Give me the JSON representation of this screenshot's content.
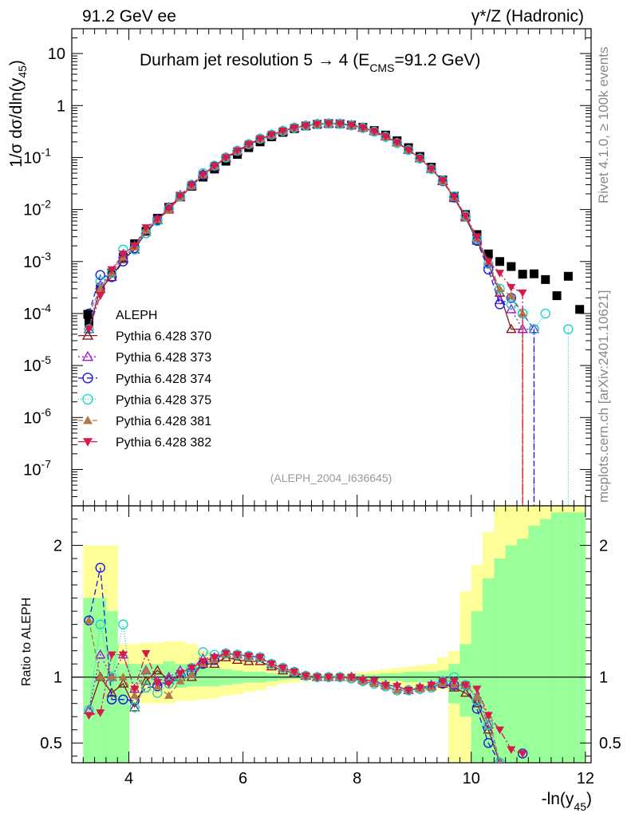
{
  "header": {
    "left": "91.2 GeV ee",
    "right": "γ*/Z (Hadronic)"
  },
  "side_labels": {
    "rivet": "Rivet 4.1.0, ≥ 100k events",
    "mcplots": "mcplots.cern.ch [arXiv:2401.10621]"
  },
  "analysis_tag": "(ALEPH_2004_I636645)",
  "colors": {
    "ALEPH": "#000000",
    "370": "#8b1a1a",
    "373": "#9a1ad6",
    "374": "#1a1adb",
    "375": "#1ad6c4",
    "381": "#b07848",
    "382": "#d61a4a",
    "band_yellow": "#ffff99",
    "band_green": "#99ff99"
  },
  "chart_data": [
    {
      "type": "line",
      "title": "Durham jet resolution 5 → 4 (E_CMS=91.2 GeV)",
      "title_main": "Durham jet resolution 5",
      "title_arrow": "→",
      "title_rest": "4 (E",
      "title_sub": "CMS",
      "title_end": "=91.2 GeV)",
      "ylabel": "1/σ  dσ/dln(y45)",
      "ylabel_main": "1/σ  dσ/dln(y",
      "ylabel_sub": "45",
      "ylabel_end": ")",
      "yscale": "log",
      "xlim": [
        3.0,
        12.1
      ],
      "ylim": [
        2e-08,
        30
      ],
      "y_tick_labels": [
        "10^-7",
        "10^-6",
        "10^-5",
        "10^-4",
        "10^-3",
        "10^-2",
        "10^-1",
        "1",
        "10"
      ],
      "x": [
        3.3,
        3.5,
        3.7,
        3.9,
        4.1,
        4.3,
        4.5,
        4.7,
        4.9,
        5.1,
        5.3,
        5.5,
        5.7,
        5.9,
        6.1,
        6.3,
        6.5,
        6.7,
        6.9,
        7.1,
        7.3,
        7.5,
        7.7,
        7.9,
        8.1,
        8.3,
        8.5,
        8.7,
        8.9,
        9.1,
        9.3,
        9.5,
        9.7,
        9.9,
        10.1,
        10.3,
        10.5,
        10.7,
        10.9,
        11.1,
        11.3,
        11.5,
        11.7,
        11.9
      ],
      "series": [
        {
          "name": "ALEPH",
          "marker": "square",
          "values": [
            7e-05,
            0.0003,
            0.0006,
            0.0012,
            0.0022,
            0.0038,
            0.0068,
            0.011,
            0.018,
            0.028,
            0.042,
            0.06,
            0.085,
            0.115,
            0.155,
            0.2,
            0.25,
            0.305,
            0.36,
            0.405,
            0.435,
            0.45,
            0.445,
            0.42,
            0.38,
            0.33,
            0.27,
            0.21,
            0.155,
            0.105,
            0.065,
            0.037,
            0.018,
            0.008,
            0.0033,
            0.0014,
            0.001,
            0.0008,
            0.00057,
            0.00058,
            0.00045,
            0.00022,
            0.00052,
            0.00012
          ]
        },
        {
          "name": "Pythia 6.428 370",
          "marker": "triangle-up-open",
          "dash": "",
          "values": [
            5e-05,
            0.0003,
            0.0005,
            0.0011,
            0.0017,
            0.0037,
            0.0062,
            0.01,
            0.017,
            0.028,
            0.046,
            0.066,
            0.098,
            0.13,
            0.175,
            0.225,
            0.27,
            0.32,
            0.37,
            0.41,
            0.44,
            0.45,
            0.445,
            0.42,
            0.375,
            0.32,
            0.255,
            0.195,
            0.14,
            0.096,
            0.06,
            0.035,
            0.0165,
            0.007,
            0.0025,
            0.0009,
            0.00025,
            5e-05,
            5e-05,
            null,
            null,
            null,
            null,
            null
          ]
        },
        {
          "name": "Pythia 6.428 373",
          "marker": "triangle-up-open",
          "dash": "2,3",
          "values": [
            5e-05,
            0.00035,
            0.0006,
            0.0014,
            0.002,
            0.004,
            0.0066,
            0.011,
            0.019,
            0.03,
            0.048,
            0.069,
            0.1,
            0.135,
            0.18,
            0.23,
            0.275,
            0.325,
            0.375,
            0.41,
            0.44,
            0.45,
            0.445,
            0.42,
            0.375,
            0.32,
            0.255,
            0.195,
            0.14,
            0.097,
            0.061,
            0.036,
            0.017,
            0.0075,
            0.0028,
            0.0009,
            0.00018,
            0.00012,
            5e-05,
            5e-05,
            null,
            null,
            null,
            null
          ]
        },
        {
          "name": "Pythia 6.428 374",
          "marker": "circle-open",
          "dash": "7,4",
          "values": [
            0.0001,
            0.00055,
            0.0005,
            0.001,
            0.0018,
            0.0035,
            0.0063,
            0.0105,
            0.018,
            0.029,
            0.046,
            0.068,
            0.1,
            0.135,
            0.18,
            0.23,
            0.275,
            0.325,
            0.375,
            0.41,
            0.44,
            0.45,
            0.445,
            0.415,
            0.37,
            0.315,
            0.25,
            0.19,
            0.14,
            0.096,
            0.06,
            0.035,
            0.017,
            0.0075,
            0.0025,
            0.0007,
            0.00015,
            0.0002,
            0.0001,
            5e-05,
            null,
            null,
            null,
            null
          ]
        },
        {
          "name": "Pythia 6.428 375",
          "marker": "circle-open",
          "dash": "1,2",
          "values": [
            5e-05,
            0.00042,
            0.0006,
            0.0017,
            0.0017,
            0.0035,
            0.006,
            0.0105,
            0.018,
            0.03,
            0.05,
            0.07,
            0.1,
            0.135,
            0.18,
            0.23,
            0.275,
            0.325,
            0.375,
            0.41,
            0.44,
            0.45,
            0.445,
            0.415,
            0.37,
            0.315,
            0.25,
            0.19,
            0.14,
            0.096,
            0.06,
            0.036,
            0.018,
            0.0075,
            0.0027,
            0.0009,
            0.0003,
            0.00015,
            0.0001,
            5e-05,
            0.0001,
            null,
            5e-05,
            null
          ]
        },
        {
          "name": "Pythia 6.428 381",
          "marker": "triangle-up-filled",
          "dash": "6,3",
          "values": [
            0.0001,
            0.0003,
            0.0006,
            0.0012,
            0.0019,
            0.004,
            0.0063,
            0.0095,
            0.0175,
            0.0285,
            0.046,
            0.068,
            0.1,
            0.135,
            0.18,
            0.23,
            0.275,
            0.325,
            0.375,
            0.41,
            0.44,
            0.45,
            0.445,
            0.415,
            0.37,
            0.315,
            0.25,
            0.19,
            0.14,
            0.096,
            0.06,
            0.035,
            0.017,
            0.0075,
            0.0028,
            0.001,
            0.0003,
            0.00022,
            0.0001,
            null,
            null,
            null,
            null,
            null
          ]
        },
        {
          "name": "Pythia 6.428 382",
          "marker": "triangle-down-filled",
          "dash": "8,3,2,3",
          "values": [
            5e-05,
            0.00022,
            0.0007,
            0.0014,
            0.002,
            0.0045,
            0.0065,
            0.0105,
            0.0185,
            0.03,
            0.047,
            0.069,
            0.1,
            0.135,
            0.18,
            0.23,
            0.275,
            0.325,
            0.375,
            0.41,
            0.44,
            0.45,
            0.445,
            0.42,
            0.375,
            0.32,
            0.255,
            0.195,
            0.14,
            0.097,
            0.061,
            0.036,
            0.0175,
            0.0075,
            0.003,
            0.001,
            0.0006,
            0.00032,
            0.00025,
            null,
            null,
            null,
            null,
            null
          ]
        }
      ],
      "legend": [
        "ALEPH",
        "Pythia 6.428 370",
        "Pythia 6.428 373",
        "Pythia 6.428 374",
        "Pythia 6.428 375",
        "Pythia 6.428 381",
        "Pythia 6.428 382"
      ],
      "legend_position": "left-middle"
    },
    {
      "type": "line",
      "ylabel": "Ratio to ALEPH",
      "xlabel": "-ln(y45)",
      "xlabel_main": "-ln(y",
      "xlabel_sub": "45",
      "xlabel_end": ")",
      "xlim": [
        3.0,
        12.1
      ],
      "ylim": [
        0.35,
        2.3
      ],
      "x_ticks": [
        4,
        6,
        8,
        10,
        12
      ],
      "y_ticks": [
        0.5,
        1,
        2
      ],
      "reference": 1,
      "x": [
        3.3,
        3.5,
        3.7,
        3.9,
        4.1,
        4.3,
        4.5,
        4.7,
        4.9,
        5.1,
        5.3,
        5.5,
        5.7,
        5.9,
        6.1,
        6.3,
        6.5,
        6.7,
        6.9,
        7.1,
        7.3,
        7.5,
        7.7,
        7.9,
        8.1,
        8.3,
        8.5,
        8.7,
        8.9,
        9.1,
        9.3,
        9.5,
        9.7,
        9.9,
        10.1,
        10.3,
        10.5,
        10.7,
        10.9
      ],
      "band_edges": [
        3.2,
        3.4,
        3.6,
        3.8,
        4.0,
        4.2,
        4.4,
        4.6,
        4.8,
        5.0,
        5.2,
        5.4,
        5.6,
        5.8,
        6.0,
        6.2,
        6.4,
        6.6,
        6.8,
        7.0,
        7.2,
        7.4,
        7.6,
        7.8,
        8.0,
        8.2,
        8.4,
        8.6,
        8.8,
        9.0,
        9.2,
        9.4,
        9.6,
        9.8,
        10.0,
        10.2,
        10.4,
        10.6,
        10.8,
        11.0,
        11.2,
        11.4,
        11.6,
        11.8,
        12.0
      ],
      "band_yellow_lo": [
        0.35,
        0.35,
        0.35,
        0.35,
        0.8,
        0.8,
        0.8,
        0.8,
        0.82,
        0.82,
        0.83,
        0.84,
        0.86,
        0.87,
        0.89,
        0.9,
        0.93,
        0.95,
        0.96,
        0.97,
        0.98,
        0.98,
        0.98,
        0.97,
        0.96,
        0.95,
        0.94,
        0.93,
        0.92,
        0.92,
        0.93,
        0.9,
        0.35,
        0.35,
        0.35,
        0.35,
        0.35,
        0.35,
        0.35,
        0.35,
        0.35,
        0.35,
        0.35,
        0.35
      ],
      "band_yellow_hi": [
        2.0,
        2.0,
        2.0,
        1.25,
        1.25,
        1.26,
        1.26,
        1.27,
        1.27,
        1.25,
        1.2,
        1.17,
        1.16,
        1.15,
        1.12,
        1.11,
        1.08,
        1.05,
        1.04,
        1.03,
        1.02,
        1.02,
        1.02,
        1.03,
        1.04,
        1.05,
        1.06,
        1.07,
        1.08,
        1.09,
        1.1,
        1.15,
        1.2,
        1.65,
        1.85,
        2.1,
        2.3,
        2.3,
        2.3,
        2.3,
        2.3,
        2.3,
        2.3,
        2.3
      ],
      "band_green_lo": [
        0.35,
        0.35,
        0.35,
        0.35,
        0.95,
        0.95,
        0.94,
        0.94,
        0.92,
        0.93,
        0.93,
        0.93,
        0.94,
        0.95,
        0.96,
        0.96,
        0.97,
        0.98,
        0.985,
        0.99,
        0.99,
        0.99,
        0.99,
        0.985,
        0.98,
        0.98,
        0.97,
        0.97,
        0.96,
        0.96,
        0.96,
        0.95,
        0.8,
        0.7,
        0.35,
        0.35,
        0.35,
        0.35,
        0.35,
        0.35,
        0.35,
        0.35,
        0.35,
        0.35
      ],
      "band_green_hi": [
        1.6,
        1.6,
        1.5,
        1.1,
        1.1,
        1.1,
        1.1,
        1.12,
        1.1,
        1.1,
        1.07,
        1.07,
        1.06,
        1.05,
        1.04,
        1.04,
        1.03,
        1.02,
        1.015,
        1.01,
        1.01,
        1.01,
        1.01,
        1.015,
        1.02,
        1.02,
        1.03,
        1.03,
        1.04,
        1.04,
        1.04,
        1.05,
        1.1,
        1.25,
        1.5,
        1.75,
        1.9,
        2.0,
        2.05,
        2.15,
        2.2,
        2.25,
        2.25,
        2.25
      ],
      "series": [
        {
          "name": "Pythia 6.428 370",
          "values": [
            0.75,
            1.0,
            0.88,
            0.95,
            0.77,
            0.97,
            1.05,
            0.98,
            1.0,
            1.0,
            1.1,
            1.1,
            1.15,
            1.13,
            1.12,
            1.12,
            1.08,
            1.05,
            1.03,
            1.01,
            1.0,
            1.0,
            1.0,
            1.0,
            0.98,
            0.97,
            0.94,
            0.93,
            0.9,
            0.92,
            0.93,
            0.95,
            0.92,
            0.88,
            0.8,
            0.6,
            0.35,
            null,
            null
          ]
        },
        {
          "name": "Pythia 6.428 373",
          "values": [
            0.75,
            1.17,
            1.0,
            1.17,
            0.91,
            1.05,
            0.97,
            1.0,
            1.05,
            1.07,
            1.14,
            1.15,
            1.18,
            1.17,
            1.16,
            1.15,
            1.1,
            1.07,
            1.04,
            1.01,
            1.0,
            1.0,
            1.0,
            1.0,
            0.98,
            0.97,
            0.94,
            0.93,
            0.9,
            0.92,
            0.94,
            0.97,
            0.94,
            0.94,
            0.85,
            0.64,
            0.35,
            null,
            null
          ]
        },
        {
          "name": "Pythia 6.428 374",
          "values": [
            1.43,
            1.83,
            0.83,
            0.83,
            0.82,
            0.92,
            0.93,
            0.95,
            1.0,
            1.03,
            1.1,
            1.13,
            1.18,
            1.17,
            1.16,
            1.15,
            1.1,
            1.07,
            1.04,
            1.01,
            1.0,
            1.0,
            1.0,
            0.99,
            0.97,
            0.95,
            0.93,
            0.9,
            0.9,
            0.91,
            0.92,
            0.95,
            0.94,
            0.94,
            0.76,
            0.5,
            0.35,
            null,
            0.42
          ]
        },
        {
          "name": "Pythia 6.428 375",
          "values": [
            0.75,
            1.4,
            1.0,
            1.4,
            0.77,
            0.92,
            0.88,
            0.95,
            1.0,
            1.07,
            1.19,
            1.17,
            1.18,
            1.17,
            1.16,
            1.15,
            1.1,
            1.07,
            1.04,
            1.01,
            1.0,
            1.0,
            1.0,
            0.99,
            0.97,
            0.95,
            0.93,
            0.9,
            0.9,
            0.91,
            0.92,
            0.97,
            1.0,
            0.94,
            0.82,
            0.64,
            0.35,
            null,
            null
          ]
        },
        {
          "name": "Pythia 6.428 381",
          "values": [
            1.43,
            1.0,
            1.0,
            1.0,
            0.86,
            1.05,
            0.93,
            0.86,
            0.97,
            1.02,
            1.1,
            1.13,
            1.18,
            1.17,
            1.16,
            1.15,
            1.1,
            1.07,
            1.04,
            1.01,
            1.0,
            1.0,
            1.0,
            0.99,
            0.97,
            0.95,
            0.93,
            0.9,
            0.9,
            0.91,
            0.92,
            0.95,
            0.94,
            0.94,
            0.85,
            0.71,
            0.35,
            null,
            null
          ]
        },
        {
          "name": "Pythia 6.428 382",
          "values": [
            0.71,
            0.73,
            1.17,
            1.17,
            0.91,
            1.18,
            0.96,
            0.95,
            1.03,
            1.07,
            1.12,
            1.15,
            1.18,
            1.17,
            1.16,
            1.15,
            1.1,
            1.07,
            1.04,
            1.01,
            1.0,
            1.0,
            1.0,
            1.0,
            0.98,
            0.97,
            0.94,
            0.93,
            0.9,
            0.92,
            0.94,
            0.97,
            0.97,
            0.94,
            0.91,
            0.71,
            0.6,
            0.45,
            0.42
          ]
        }
      ]
    }
  ]
}
